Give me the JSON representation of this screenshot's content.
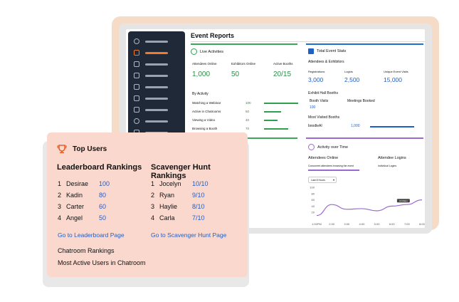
{
  "app": {
    "title": "Event Reports"
  },
  "sidebar": {
    "items": [
      {
        "icon": "dashboard-icon"
      },
      {
        "icon": "monitor-icon",
        "active": true
      },
      {
        "icon": "chart-icon"
      },
      {
        "icon": "box-icon"
      },
      {
        "icon": "list-icon"
      },
      {
        "icon": "chat-icon"
      },
      {
        "icon": "contacts-icon"
      },
      {
        "icon": "user-icon"
      },
      {
        "icon": "bell-icon"
      }
    ]
  },
  "live_activities": {
    "title": "Live Activities",
    "stats": [
      {
        "label": "Attendees Online",
        "value": "1,000"
      },
      {
        "label": "Exhibitors Online",
        "value": "50"
      },
      {
        "label": "Active Booths",
        "value": "20/15"
      }
    ],
    "by_activity_title": "By Activity",
    "activities": [
      {
        "label": "Watching a Webinar",
        "value": "100"
      },
      {
        "label": "Active in Chatrooms",
        "value": "50"
      },
      {
        "label": "Viewing a Video",
        "value": "40"
      },
      {
        "label": "Browsing a Booth",
        "value": "70"
      }
    ]
  },
  "total_event_stats": {
    "title": "Total Event Stats",
    "subtitle": "Attendees & Exhibitors",
    "stats": [
      {
        "label": "Registrations",
        "value": "3,000"
      },
      {
        "label": "Logins",
        "value": "2,500"
      },
      {
        "label": "Unique Event Visits",
        "value": "15,000"
      }
    ],
    "hall_title": "Exhibit Hall Booths",
    "hall_stats": [
      {
        "label": "Booth Visits",
        "value": "100"
      },
      {
        "label": "Meetings Booked",
        "value": ""
      }
    ],
    "most_visited_title": "Most Visited Booths",
    "most_visited": [
      {
        "label": "boodleAI",
        "value": "1,000"
      }
    ]
  },
  "activity_over_time": {
    "title": "Activity over Time",
    "left_heading": "Attendees Online",
    "left_sub": "Concurrent attendees browsing the event",
    "right_heading": "Attendee Logins",
    "right_sub": "Individual Logins",
    "range_select": "Last 8 Hours",
    "tooltip": "10:00am",
    "y_ticks": [
      "100",
      "80",
      "60",
      "40",
      "20"
    ],
    "x_ticks": [
      "1:00PM",
      "2:00",
      "3:00",
      "4:00",
      "5:00",
      "6:00",
      "7:00",
      "8:00"
    ]
  },
  "chart_data": {
    "type": "line",
    "x": [
      "1:00PM",
      "2:00",
      "3:00",
      "4:00",
      "5:00",
      "6:00",
      "7:00",
      "8:00"
    ],
    "series": [
      {
        "values": [
          10,
          45,
          30,
          32,
          25,
          40,
          45,
          60
        ]
      }
    ],
    "ylim": [
      0,
      100
    ]
  },
  "top_users": {
    "title": "Top Users",
    "leaderboard": {
      "heading": "Leaderboard Rankings",
      "rows": [
        {
          "rank": "1",
          "name": "Desirae",
          "value": "100"
        },
        {
          "rank": "2",
          "name": "Kadin",
          "value": "80"
        },
        {
          "rank": "3",
          "name": "Carter",
          "value": "60"
        },
        {
          "rank": "4",
          "name": "Angel",
          "value": "50"
        }
      ],
      "link": "Go to Leaderboard Page"
    },
    "scavenger": {
      "heading": "Scavenger Hunt Rankings",
      "rows": [
        {
          "rank": "1",
          "name": "Jocelyn",
          "value": "10/10"
        },
        {
          "rank": "2",
          "name": "Ryan",
          "value": "9/10"
        },
        {
          "rank": "3",
          "name": "Haylie",
          "value": "8/10"
        },
        {
          "rank": "4",
          "name": "Carla",
          "value": "7/10"
        }
      ],
      "link": "Go to Scavenger Hunt Page"
    },
    "chatroom_rankings": "Chatroom Rankings",
    "most_active": "Most Active Users in Chatroom"
  }
}
